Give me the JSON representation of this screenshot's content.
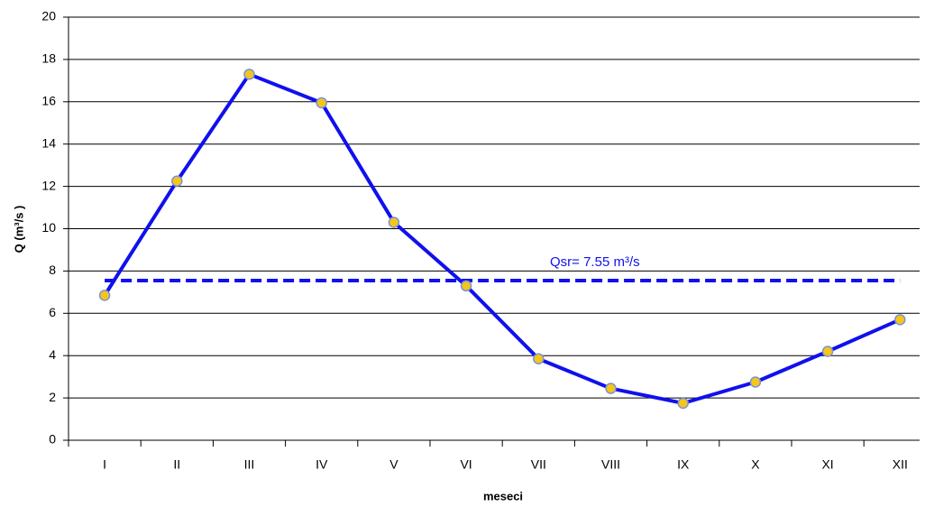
{
  "chart_data": {
    "type": "line",
    "categories": [
      "I",
      "II",
      "III",
      "IV",
      "V",
      "VI",
      "VII",
      "VIII",
      "IX",
      "X",
      "XI",
      "XII"
    ],
    "values": [
      6.85,
      12.25,
      17.3,
      15.95,
      10.3,
      7.3,
      3.85,
      2.45,
      1.75,
      2.75,
      4.2,
      5.7
    ],
    "color": "#1010ee",
    "marker_color": "#f5c518",
    "ylim": [
      0,
      20
    ],
    "yticks": [
      0,
      2,
      4,
      6,
      8,
      10,
      12,
      14,
      16,
      18,
      20
    ],
    "grid": true,
    "y_label": "Q (m³/s )",
    "x_label": "meseci",
    "reference_line": {
      "value": 7.55,
      "label": "Qsr= 7.55 m³/s",
      "color": "#1010ee"
    }
  }
}
